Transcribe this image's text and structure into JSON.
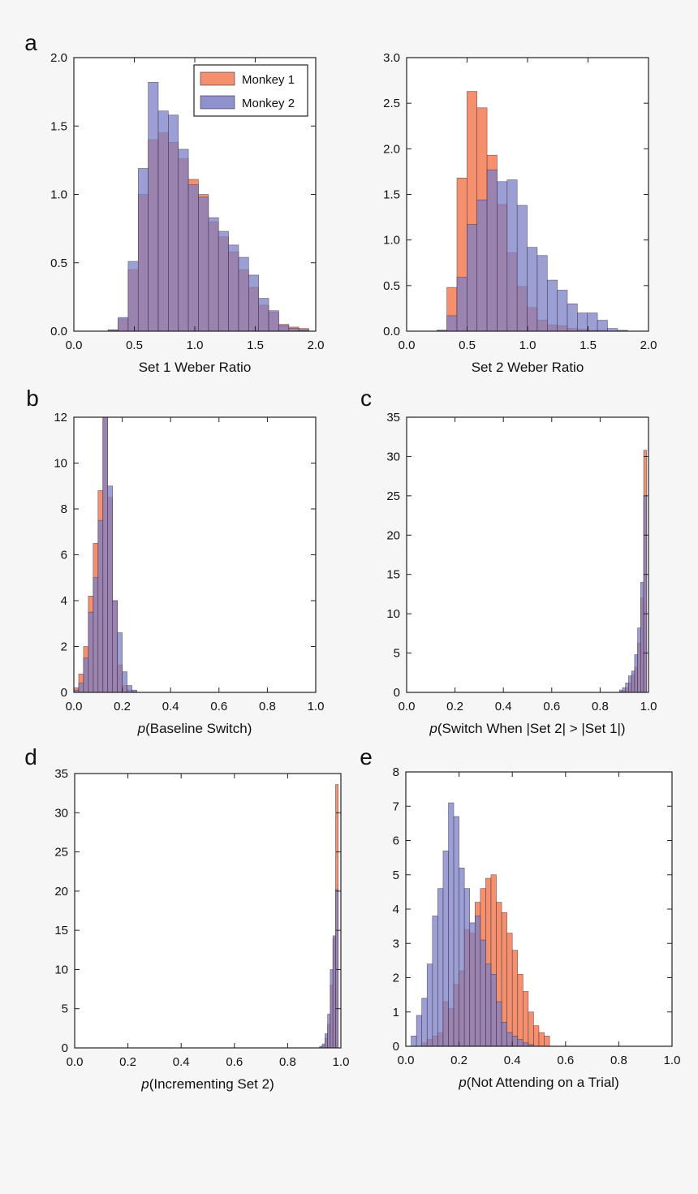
{
  "colors": {
    "monkey1": "#f4845f",
    "monkey2": "#7b7fc4",
    "overlap": "#7d3d6e",
    "frame": "#222222"
  },
  "legend": {
    "labels": [
      "Monkey 1",
      "Monkey 2"
    ]
  },
  "chart_data": [
    {
      "panel": "a",
      "type": "bar",
      "xlabel": "Set 1 Weber Ratio",
      "xlabel_italic_prefix": "",
      "xlabel_rest": "Set 1 Weber Ratio",
      "xlim": [
        0,
        2
      ],
      "ylim": [
        0,
        2
      ],
      "xticks": [
        0.0,
        0.5,
        1.0,
        1.5,
        2.0
      ],
      "xtick_labels": [
        "0.0",
        "0.5",
        "1.0",
        "1.5",
        "2.0"
      ],
      "yticks": [
        0.0,
        0.5,
        1.0,
        1.5,
        2.0
      ],
      "ytick_labels": [
        "0.0",
        "0.5",
        "1.0",
        "1.5",
        "2.0"
      ],
      "legend": "top-right",
      "bin_start": 0.2,
      "bin_width": 0.083,
      "series": [
        {
          "name": "Monkey 1",
          "values": [
            0,
            0.01,
            0.09,
            0.45,
            1.0,
            1.4,
            1.45,
            1.38,
            1.26,
            1.11,
            1.0,
            0.8,
            0.69,
            0.58,
            0.45,
            0.32,
            0.19,
            0.14,
            0.05,
            0.03,
            0.02
          ]
        },
        {
          "name": "Monkey 2",
          "values": [
            0,
            0.01,
            0.1,
            0.51,
            1.19,
            1.82,
            1.61,
            1.58,
            1.33,
            1.07,
            0.98,
            0.83,
            0.73,
            0.63,
            0.54,
            0.41,
            0.24,
            0.15,
            0.04,
            0.02,
            0.01
          ]
        }
      ]
    },
    {
      "panel": "",
      "type": "bar",
      "xlabel": "Set 2 Weber Ratio",
      "xlabel_italic_prefix": "",
      "xlabel_rest": "Set 2 Weber Ratio",
      "xlim": [
        0,
        2
      ],
      "ylim": [
        0,
        3
      ],
      "xticks": [
        0.0,
        0.5,
        1.0,
        1.5,
        2.0
      ],
      "xtick_labels": [
        "0.0",
        "0.5",
        "1.0",
        "1.5",
        "2.0"
      ],
      "yticks": [
        0.0,
        0.5,
        1.0,
        1.5,
        2.0,
        2.5,
        3.0
      ],
      "ytick_labels": [
        "0.0",
        "0.5",
        "1.0",
        "1.5",
        "2.0",
        "2.5",
        "3.0"
      ],
      "bin_start": 0.25,
      "bin_width": 0.083,
      "series": [
        {
          "name": "Monkey 1",
          "values": [
            0.01,
            0.48,
            1.68,
            2.63,
            2.45,
            1.93,
            1.39,
            0.86,
            0.49,
            0.26,
            0.12,
            0.07,
            0.06,
            0.03,
            0.02,
            0.01,
            0.01,
            0,
            0
          ]
        },
        {
          "name": "Monkey 2",
          "values": [
            0.01,
            0.17,
            0.59,
            1.17,
            1.44,
            1.77,
            1.64,
            1.66,
            1.38,
            0.92,
            0.83,
            0.56,
            0.45,
            0.3,
            0.2,
            0.2,
            0.12,
            0.03,
            0.01
          ]
        }
      ]
    },
    {
      "panel": "b",
      "type": "bar",
      "xlabel": "p(Baseline Switch)",
      "xlabel_italic_prefix": "p",
      "xlabel_rest": "(Baseline Switch)",
      "xlim": [
        0,
        1
      ],
      "ylim": [
        0,
        12
      ],
      "xticks": [
        0.0,
        0.2,
        0.4,
        0.6,
        0.8,
        1.0
      ],
      "xtick_labels": [
        "0.0",
        "0.2",
        "0.4",
        "0.6",
        "0.8",
        "1.0"
      ],
      "yticks": [
        0,
        2,
        4,
        6,
        8,
        10,
        12
      ],
      "ytick_labels": [
        "0",
        "2",
        "4",
        "6",
        "8",
        "10",
        "12"
      ],
      "bin_start": 0.0,
      "bin_width": 0.02,
      "series": [
        {
          "name": "Monkey 1",
          "values": [
            0.2,
            0.8,
            2.0,
            4.2,
            6.5,
            8.8,
            12.0,
            8.5,
            4.0,
            1.2,
            0.3,
            0.1,
            0.05,
            0
          ]
        },
        {
          "name": "Monkey 2",
          "values": [
            0.1,
            0.4,
            1.5,
            3.5,
            5.0,
            7.5,
            12.0,
            9.0,
            4.0,
            2.6,
            0.9,
            0.3,
            0.1,
            0
          ]
        }
      ]
    },
    {
      "panel": "c",
      "type": "bar",
      "xlabel": "p(Switch When |Set 2| > |Set 1|)",
      "xlabel_italic_prefix": "p",
      "xlabel_rest": "(Switch When |Set 2| > |Set 1|)",
      "xlim": [
        0,
        1
      ],
      "ylim": [
        0,
        35
      ],
      "xticks": [
        0.0,
        0.2,
        0.4,
        0.6,
        0.8,
        1.0
      ],
      "xtick_labels": [
        "0.0",
        "0.2",
        "0.4",
        "0.6",
        "0.8",
        "1.0"
      ],
      "yticks": [
        0,
        5,
        10,
        15,
        20,
        25,
        30,
        35
      ],
      "ytick_labels": [
        "0",
        "5",
        "10",
        "15",
        "20",
        "25",
        "30",
        "35"
      ],
      "bin_start": 0.88,
      "bin_width": 0.0125,
      "series": [
        {
          "name": "Monkey 1",
          "values": [
            0.1,
            0.2,
            0.6,
            1.2,
            2.2,
            3.2,
            6.3,
            12.0,
            30.8
          ]
        },
        {
          "name": "Monkey 2",
          "values": [
            0.3,
            0.6,
            1.2,
            2.1,
            2.7,
            4.8,
            8.2,
            14.0,
            25.0
          ]
        }
      ]
    },
    {
      "panel": "d",
      "type": "bar",
      "xlabel": "p(Incrementing Set 2)",
      "xlabel_italic_prefix": "p",
      "xlabel_rest": "(Incrementing Set 2)",
      "xlim": [
        0,
        1
      ],
      "ylim": [
        0,
        35
      ],
      "xticks": [
        0.0,
        0.2,
        0.4,
        0.6,
        0.8,
        1.0
      ],
      "xtick_labels": [
        "0.0",
        "0.2",
        "0.4",
        "0.6",
        "0.8",
        "1.0"
      ],
      "yticks": [
        0,
        5,
        10,
        15,
        20,
        25,
        30,
        35
      ],
      "ytick_labels": [
        "0",
        "5",
        "10",
        "15",
        "20",
        "25",
        "30",
        "35"
      ],
      "bin_start": 0.92,
      "bin_width": 0.01,
      "series": [
        {
          "name": "Monkey 1",
          "values": [
            0.1,
            0.3,
            1.2,
            3.0,
            8.0,
            14.0,
            33.6
          ]
        },
        {
          "name": "Monkey 2",
          "values": [
            0.2,
            0.5,
            1.8,
            4.3,
            10.0,
            14.3,
            20.2
          ]
        }
      ]
    },
    {
      "panel": "e",
      "type": "bar",
      "xlabel": "p(Not Attending on a Trial)",
      "xlabel_italic_prefix": "p",
      "xlabel_rest": "(Not Attending on a Trial)",
      "xlim": [
        0,
        1
      ],
      "ylim": [
        0,
        8
      ],
      "xticks": [
        0.0,
        0.2,
        0.4,
        0.6,
        0.8,
        1.0
      ],
      "xtick_labels": [
        "0.0",
        "0.2",
        "0.4",
        "0.6",
        "0.8",
        "1.0"
      ],
      "yticks": [
        0,
        1,
        2,
        3,
        4,
        5,
        6,
        7,
        8
      ],
      "ytick_labels": [
        "0",
        "1",
        "2",
        "3",
        "4",
        "5",
        "6",
        "7",
        "8"
      ],
      "bin_start": 0.02,
      "bin_width": 0.02,
      "series": [
        {
          "name": "Monkey 1",
          "values": [
            0,
            0,
            0.1,
            0.2,
            0.3,
            0.4,
            1.3,
            1.1,
            1.8,
            2.2,
            3.4,
            3.3,
            4.2,
            4.6,
            4.9,
            5.0,
            4.2,
            3.9,
            3.3,
            2.8,
            2.1,
            1.6,
            1.0,
            0.6,
            0.4,
            0.3
          ]
        },
        {
          "name": "Monkey 2",
          "values": [
            0.3,
            0.9,
            1.4,
            2.4,
            3.8,
            4.6,
            5.7,
            7.1,
            6.7,
            5.2,
            4.6,
            3.6,
            3.8,
            3.1,
            2.4,
            2.1,
            1.3,
            0.7,
            0.4,
            0.3,
            0.2,
            0.1,
            0.05,
            0,
            0,
            0
          ]
        }
      ]
    }
  ]
}
